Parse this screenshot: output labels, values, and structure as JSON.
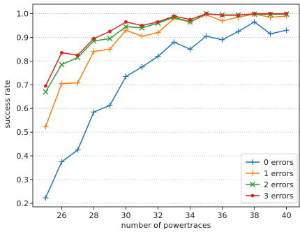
{
  "chart_data": {
    "type": "line",
    "xlabel": "number of powertraces",
    "ylabel": "success rate",
    "xlim": [
      24.2,
      40.8
    ],
    "ylim": [
      0.185,
      1.04
    ],
    "x_ticks": [
      26,
      28,
      30,
      32,
      34,
      36,
      38,
      40
    ],
    "y_ticks": [
      0.2,
      0.3,
      0.4,
      0.5,
      0.6,
      0.7,
      0.8,
      0.9,
      1.0
    ],
    "grid": "y",
    "legend_position": "lower-right",
    "x": [
      25,
      26,
      27,
      28,
      29,
      30,
      31,
      32,
      33,
      34,
      35,
      36,
      37,
      38,
      39,
      40
    ],
    "series": [
      {
        "name": "0 errors",
        "color": "#1f77b4",
        "marker": "plus",
        "values": [
          0.223,
          0.375,
          0.425,
          0.585,
          0.613,
          0.735,
          0.775,
          0.82,
          0.88,
          0.85,
          0.905,
          0.89,
          0.925,
          0.965,
          0.915,
          0.93
        ]
      },
      {
        "name": "1 errors",
        "color": "#ff7f0e",
        "marker": "plus",
        "values": [
          0.523,
          0.705,
          0.708,
          0.84,
          0.85,
          0.93,
          0.905,
          0.92,
          0.98,
          0.965,
          0.995,
          0.97,
          0.985,
          0.998,
          0.985,
          0.99
        ]
      },
      {
        "name": "2 errors",
        "color": "#2ca02c",
        "marker": "x",
        "values": [
          0.67,
          0.785,
          0.815,
          0.885,
          0.895,
          0.945,
          0.94,
          0.96,
          0.985,
          0.965,
          1.0,
          0.995,
          0.995,
          0.998,
          0.997,
          0.998
        ]
      },
      {
        "name": "3 errors",
        "color": "#d62728",
        "marker": "dot",
        "values": [
          0.695,
          0.835,
          0.825,
          0.895,
          0.925,
          0.965,
          0.95,
          0.965,
          0.99,
          0.975,
          1.0,
          0.993,
          0.993,
          1.0,
          1.0,
          1.0
        ]
      }
    ]
  }
}
